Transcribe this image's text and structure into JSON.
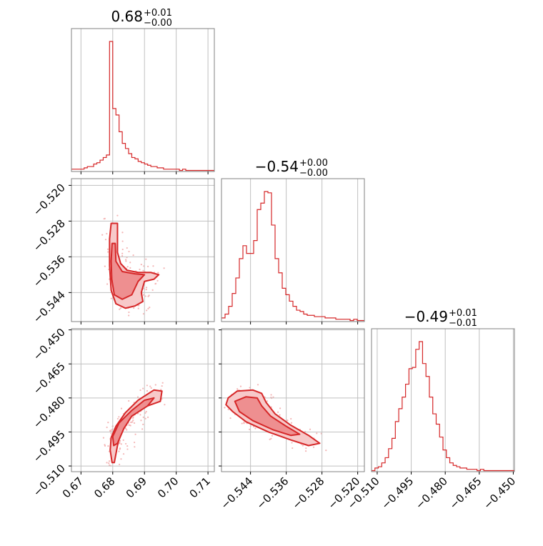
{
  "colors": {
    "accent": "#d62728",
    "grid": "#c0c0c0",
    "frame": "#808080",
    "scatter": "#f4b6b6",
    "fill_outer": "#f7c9c9",
    "fill_inner": "#ee8f90"
  },
  "titles": [
    {
      "median": "0.68",
      "plus": "+0.01",
      "minus": "−0.00"
    },
    {
      "median": "−0.54",
      "plus": "+0.00",
      "minus": "−0.00"
    },
    {
      "median": "−0.49",
      "plus": "+0.01",
      "minus": "−0.01"
    }
  ],
  "chart_data": {
    "type": "corner",
    "parameters": [
      {
        "range": [
          0.667,
          0.712
        ],
        "ticks": [
          "0.67",
          "0.68",
          "0.69",
          "0.70",
          "0.71"
        ],
        "tick_values": [
          0.67,
          0.68,
          0.69,
          0.7,
          0.71
        ]
      },
      {
        "range": [
          -0.5505,
          -0.5185
        ],
        "ticks": [
          "−0.544",
          "−0.536",
          "−0.528",
          "−0.520"
        ],
        "tick_values": [
          -0.544,
          -0.536,
          -0.528,
          -0.52
        ]
      },
      {
        "range": [
          -0.5125,
          -0.4495
        ],
        "ticks": [
          "−0.510",
          "−0.495",
          "−0.480",
          "−0.465",
          "−0.450"
        ],
        "tick_values": [
          -0.51,
          -0.495,
          -0.48,
          -0.465,
          -0.45
        ]
      }
    ],
    "histograms": [
      {
        "bin_start": 0.667,
        "bin_width": 0.001,
        "heights": [
          0.01,
          0.01,
          0.01,
          0.01,
          0.02,
          0.03,
          0.03,
          0.05,
          0.06,
          0.08,
          0.1,
          0.12,
          1.0,
          0.48,
          0.43,
          0.3,
          0.21,
          0.17,
          0.13,
          0.1,
          0.09,
          0.07,
          0.06,
          0.05,
          0.04,
          0.03,
          0.03,
          0.02,
          0.02,
          0.01,
          0.01,
          0.01,
          0.01,
          0.01,
          0.0,
          0.01,
          0.0,
          0.0,
          0.0,
          0.0,
          0.0,
          0.0,
          0.0,
          0.0,
          0.0
        ]
      },
      {
        "bin_start": -0.5505,
        "bin_width": 0.0008,
        "heights": [
          0.02,
          0.05,
          0.11,
          0.21,
          0.33,
          0.48,
          0.58,
          0.52,
          0.52,
          0.62,
          0.86,
          0.91,
          1.0,
          0.99,
          0.74,
          0.48,
          0.37,
          0.25,
          0.2,
          0.15,
          0.11,
          0.08,
          0.07,
          0.05,
          0.04,
          0.04,
          0.03,
          0.03,
          0.03,
          0.02,
          0.02,
          0.02,
          0.01,
          0.01,
          0.01,
          0.01,
          0.0,
          0.01,
          0.0,
          0.0
        ]
      },
      {
        "bin_start": -0.5125,
        "bin_width": 0.0015,
        "heights": [
          0.0,
          0.02,
          0.03,
          0.06,
          0.1,
          0.17,
          0.25,
          0.38,
          0.48,
          0.57,
          0.67,
          0.79,
          0.8,
          0.94,
          1.0,
          0.83,
          0.73,
          0.57,
          0.44,
          0.36,
          0.26,
          0.16,
          0.1,
          0.06,
          0.04,
          0.03,
          0.02,
          0.02,
          0.01,
          0.01,
          0.01,
          0.0,
          0.01,
          0.0,
          0.0,
          0.0,
          0.0,
          0.0,
          0.0,
          0.0,
          0.0,
          0.0
        ]
      }
    ],
    "contours_2d": [
      {
        "pair": [
          0,
          1
        ],
        "outer": [
          [
            0.6795,
            -0.5285
          ],
          [
            0.6815,
            -0.5285
          ],
          [
            0.6815,
            -0.535
          ],
          [
            0.6825,
            -0.5375
          ],
          [
            0.6845,
            -0.539
          ],
          [
            0.688,
            -0.5395
          ],
          [
            0.692,
            -0.5395
          ],
          [
            0.6945,
            -0.54
          ],
          [
            0.693,
            -0.541
          ],
          [
            0.69,
            -0.5415
          ],
          [
            0.689,
            -0.544
          ],
          [
            0.6895,
            -0.546
          ],
          [
            0.687,
            -0.547
          ],
          [
            0.684,
            -0.5475
          ],
          [
            0.681,
            -0.5465
          ],
          [
            0.6795,
            -0.5435
          ],
          [
            0.679,
            -0.538
          ],
          [
            0.679,
            -0.532
          ]
        ],
        "inner": [
          [
            0.6798,
            -0.533
          ],
          [
            0.6808,
            -0.533
          ],
          [
            0.681,
            -0.537
          ],
          [
            0.683,
            -0.5393
          ],
          [
            0.687,
            -0.5398
          ],
          [
            0.69,
            -0.54
          ],
          [
            0.688,
            -0.5415
          ],
          [
            0.686,
            -0.5445
          ],
          [
            0.683,
            -0.5455
          ],
          [
            0.6805,
            -0.5445
          ],
          [
            0.6797,
            -0.541
          ],
          [
            0.6795,
            -0.537
          ]
        ]
      },
      {
        "pair": [
          0,
          2
        ],
        "outer": [
          [
            0.6795,
            -0.4975
          ],
          [
            0.681,
            -0.4925
          ],
          [
            0.684,
            -0.4865
          ],
          [
            0.688,
            -0.481
          ],
          [
            0.693,
            -0.4765
          ],
          [
            0.6955,
            -0.477
          ],
          [
            0.695,
            -0.4815
          ],
          [
            0.689,
            -0.4845
          ],
          [
            0.6845,
            -0.489
          ],
          [
            0.6825,
            -0.495
          ],
          [
            0.6815,
            -0.501
          ],
          [
            0.6805,
            -0.5085
          ],
          [
            0.6798,
            -0.5085
          ],
          [
            0.6792,
            -0.503
          ]
        ],
        "inner": [
          [
            0.68,
            -0.497
          ],
          [
            0.682,
            -0.491
          ],
          [
            0.686,
            -0.4855
          ],
          [
            0.69,
            -0.481
          ],
          [
            0.693,
            -0.48
          ],
          [
            0.691,
            -0.4835
          ],
          [
            0.686,
            -0.488
          ],
          [
            0.6835,
            -0.4935
          ],
          [
            0.6815,
            -0.5
          ],
          [
            0.6803,
            -0.501
          ]
        ]
      },
      {
        "pair": [
          1,
          2
        ],
        "outer": [
          [
            -0.549,
            -0.48
          ],
          [
            -0.547,
            -0.477
          ],
          [
            -0.5435,
            -0.4765
          ],
          [
            -0.5415,
            -0.478
          ],
          [
            -0.5405,
            -0.482
          ],
          [
            -0.5385,
            -0.487
          ],
          [
            -0.535,
            -0.492
          ],
          [
            -0.531,
            -0.4965
          ],
          [
            -0.5285,
            -0.5
          ],
          [
            -0.531,
            -0.501
          ],
          [
            -0.535,
            -0.4985
          ],
          [
            -0.54,
            -0.495
          ],
          [
            -0.545,
            -0.4905
          ],
          [
            -0.548,
            -0.486
          ],
          [
            -0.5495,
            -0.483
          ]
        ],
        "inner": [
          [
            -0.5475,
            -0.4815
          ],
          [
            -0.545,
            -0.4795
          ],
          [
            -0.5425,
            -0.48
          ],
          [
            -0.5415,
            -0.4835
          ],
          [
            -0.5395,
            -0.488
          ],
          [
            -0.536,
            -0.4925
          ],
          [
            -0.533,
            -0.496
          ],
          [
            -0.535,
            -0.4965
          ],
          [
            -0.539,
            -0.494
          ],
          [
            -0.5435,
            -0.49
          ],
          [
            -0.5465,
            -0.486
          ]
        ]
      }
    ],
    "scatter_centers": [
      [
        0.6825,
        -0.539
      ],
      [
        0.685,
        -0.488
      ],
      [
        -0.542,
        -0.487
      ]
    ]
  }
}
